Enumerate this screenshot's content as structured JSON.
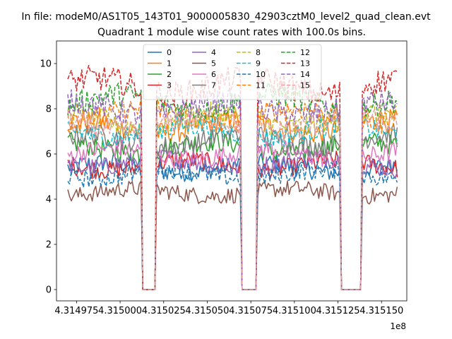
{
  "chart_data": {
    "type": "line",
    "suptitle": "In file: modeM0/AS1T05_143T01_9000005830_42903cztM0_level2_quad_clean.evt",
    "title": "Quadrant 1 module wise count rates with 100.0s bins.",
    "xlabel": "",
    "ylabel": "",
    "x_multiplier_label": "1e8",
    "xlim": [
      431496350,
      431516450
    ],
    "ylim": [
      -0.5,
      11
    ],
    "yticks": [
      0,
      2,
      4,
      6,
      8,
      10
    ],
    "xticks": [
      431497500,
      431500000,
      431502500,
      431505000,
      431507500,
      431510000,
      431512500,
      431515000
    ],
    "xtick_labels": [
      "4.314975",
      "4.315000",
      "4.315025",
      "4.315050",
      "4.315075",
      "4.315100",
      "4.315125",
      "4.315150"
    ],
    "ytick_labels": [
      "0",
      "2",
      "4",
      "6",
      "8",
      "10"
    ],
    "bin_seconds": 100,
    "x_start": 431497000,
    "x_end": 431515900,
    "gaps": [
      [
        431501200,
        431502100
      ],
      [
        431506900,
        431507900
      ],
      [
        431512600,
        431513900
      ]
    ],
    "legend": {
      "position": "upper-center",
      "columns": 4
    },
    "series": [
      {
        "name": "0",
        "color": "#1f77b4",
        "dash": "solid",
        "level": 5.4
      },
      {
        "name": "1",
        "color": "#ff7f0e",
        "dash": "solid",
        "level": 7.2
      },
      {
        "name": "2",
        "color": "#2ca02c",
        "dash": "solid",
        "level": 6.3
      },
      {
        "name": "3",
        "color": "#d62728",
        "dash": "solid",
        "level": 5.5
      },
      {
        "name": "4",
        "color": "#9467bd",
        "dash": "solid",
        "level": 5.6
      },
      {
        "name": "5",
        "color": "#8c564b",
        "dash": "solid",
        "level": 4.3
      },
      {
        "name": "6",
        "color": "#e377c2",
        "dash": "solid",
        "level": 6.0
      },
      {
        "name": "7",
        "color": "#7f7f7f",
        "dash": "solid",
        "level": 6.6
      },
      {
        "name": "8",
        "color": "#bcbd22",
        "dash": "dashed",
        "level": 7.5
      },
      {
        "name": "9",
        "color": "#17becf",
        "dash": "dashed",
        "level": 7.0
      },
      {
        "name": "10",
        "color": "#1f77b4",
        "dash": "dashed",
        "level": 5.1
      },
      {
        "name": "11",
        "color": "#ff7f0e",
        "dash": "dashed",
        "level": 7.7
      },
      {
        "name": "12",
        "color": "#2ca02c",
        "dash": "dashed",
        "level": 8.3
      },
      {
        "name": "13",
        "color": "#d62728",
        "dash": "dashed",
        "level": 9.0
      },
      {
        "name": "14",
        "color": "#9467bd",
        "dash": "dashed",
        "level": 8.0
      },
      {
        "name": "15",
        "color": "#e8a0a0",
        "dash": "dashed",
        "level": 7.3
      }
    ]
  }
}
